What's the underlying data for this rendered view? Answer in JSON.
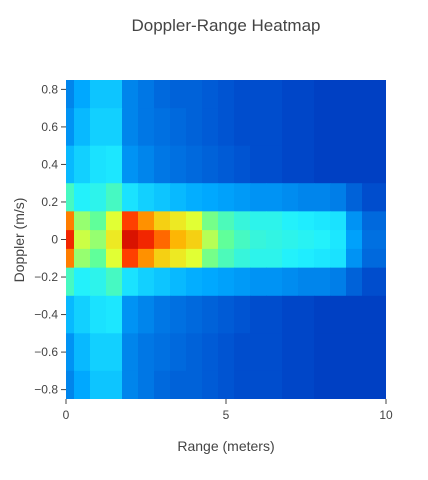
{
  "chart_data": {
    "type": "heatmap",
    "title": "Doppler-Range Heatmap",
    "xlabel": "Range (meters)",
    "ylabel": "Doppler (m/s)",
    "xlim": [
      0,
      10
    ],
    "ylim": [
      -0.85,
      0.85
    ],
    "x_ticks": [
      0,
      5,
      10
    ],
    "x_tick_labels": [
      "0",
      "5",
      "10"
    ],
    "y_ticks": [
      0.8,
      0.6,
      0.4,
      0.2,
      0,
      -0.2,
      -0.4,
      -0.6,
      -0.8
    ],
    "y_tick_labels": [
      "0.8",
      "0.6",
      "0.4",
      "0.2",
      "0",
      "−0.2",
      "−0.4",
      "−0.6",
      "−0.8"
    ],
    "colorscale": "jet",
    "colorscale_stops": [
      "#00008f",
      "#0050d0",
      "#00a8ff",
      "#20f0ff",
      "#60ff9a",
      "#e6ff30",
      "#ffb000",
      "#ff3000",
      "#c00000"
    ],
    "intensity_range": [
      0,
      1
    ],
    "grid": false,
    "range_bins": [
      0,
      0.5,
      1,
      1.5,
      2,
      2.5,
      3,
      3.5,
      4,
      4.5,
      5,
      5.5,
      6,
      6.5,
      7,
      7.5,
      8,
      8.5,
      9,
      9.5,
      10
    ],
    "doppler_bins": [
      0.8,
      0.6,
      0.4,
      0.2,
      0.1,
      0,
      -0.1,
      -0.2,
      -0.4,
      -0.6,
      -0.8
    ],
    "intensity": [
      [
        0.2,
        0.25,
        0.3,
        0.3,
        0.2,
        0.18,
        0.16,
        0.15,
        0.15,
        0.14,
        0.13,
        0.12,
        0.12,
        0.12,
        0.11,
        0.11,
        0.1,
        0.1,
        0.1,
        0.1,
        0.1
      ],
      [
        0.22,
        0.28,
        0.32,
        0.32,
        0.2,
        0.18,
        0.17,
        0.16,
        0.15,
        0.14,
        0.13,
        0.12,
        0.12,
        0.12,
        0.11,
        0.11,
        0.1,
        0.1,
        0.1,
        0.1,
        0.1
      ],
      [
        0.28,
        0.32,
        0.35,
        0.36,
        0.22,
        0.2,
        0.18,
        0.17,
        0.16,
        0.15,
        0.14,
        0.13,
        0.12,
        0.12,
        0.11,
        0.11,
        0.1,
        0.1,
        0.1,
        0.1,
        0.1
      ],
      [
        0.45,
        0.38,
        0.4,
        0.45,
        0.35,
        0.32,
        0.3,
        0.28,
        0.26,
        0.25,
        0.24,
        0.23,
        0.22,
        0.22,
        0.21,
        0.2,
        0.2,
        0.19,
        0.15,
        0.12,
        0.12
      ],
      [
        0.8,
        0.55,
        0.5,
        0.62,
        0.86,
        0.78,
        0.7,
        0.66,
        0.62,
        0.52,
        0.46,
        0.42,
        0.4,
        0.4,
        0.38,
        0.37,
        0.36,
        0.35,
        0.22,
        0.16,
        0.16
      ],
      [
        0.9,
        0.6,
        0.55,
        0.66,
        0.95,
        0.9,
        0.82,
        0.74,
        0.7,
        0.58,
        0.5,
        0.45,
        0.42,
        0.41,
        0.4,
        0.39,
        0.38,
        0.36,
        0.24,
        0.17,
        0.17
      ],
      [
        0.8,
        0.55,
        0.5,
        0.62,
        0.86,
        0.78,
        0.7,
        0.66,
        0.62,
        0.52,
        0.46,
        0.42,
        0.4,
        0.4,
        0.38,
        0.37,
        0.36,
        0.35,
        0.22,
        0.16,
        0.16
      ],
      [
        0.45,
        0.38,
        0.4,
        0.45,
        0.35,
        0.32,
        0.3,
        0.28,
        0.26,
        0.25,
        0.24,
        0.23,
        0.22,
        0.22,
        0.21,
        0.2,
        0.2,
        0.19,
        0.15,
        0.12,
        0.12
      ],
      [
        0.28,
        0.32,
        0.35,
        0.36,
        0.22,
        0.2,
        0.18,
        0.17,
        0.16,
        0.15,
        0.14,
        0.13,
        0.12,
        0.12,
        0.11,
        0.11,
        0.1,
        0.1,
        0.1,
        0.1,
        0.1
      ],
      [
        0.22,
        0.28,
        0.32,
        0.32,
        0.2,
        0.18,
        0.17,
        0.16,
        0.15,
        0.14,
        0.13,
        0.12,
        0.12,
        0.12,
        0.11,
        0.11,
        0.1,
        0.1,
        0.1,
        0.1,
        0.1
      ],
      [
        0.2,
        0.25,
        0.3,
        0.3,
        0.2,
        0.18,
        0.16,
        0.15,
        0.15,
        0.14,
        0.13,
        0.12,
        0.12,
        0.12,
        0.11,
        0.11,
        0.1,
        0.1,
        0.1,
        0.1,
        0.1
      ]
    ]
  }
}
